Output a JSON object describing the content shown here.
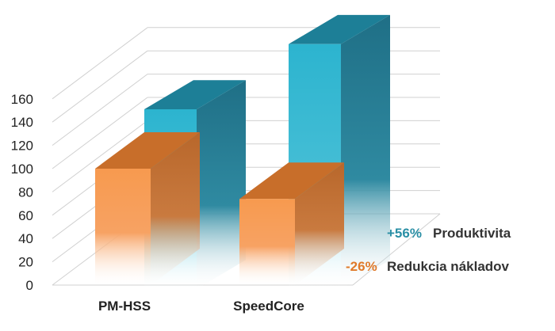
{
  "chart_data": {
    "type": "bar",
    "view": "3d-clustered-depth",
    "categories": [
      "PM-HSS",
      "SpeedCore"
    ],
    "y_ticks": [
      "0",
      "20",
      "40",
      "60",
      "80",
      "100",
      "120",
      "140",
      "160"
    ],
    "ylim": [
      0,
      160
    ],
    "grid": true,
    "series": [
      {
        "values": [
          100,
          74
        ],
        "color": "#f79a4f"
      },
      {
        "values": [
          100,
          156
        ],
        "color": "#2cb4cf"
      }
    ],
    "annotations": [
      {
        "value": "+56%",
        "text": "Produktivita",
        "value_color": "#2a8fa5"
      },
      {
        "value": "-26%",
        "text": "Redukcia nákladov",
        "value_color": "#e07a2a"
      }
    ]
  }
}
